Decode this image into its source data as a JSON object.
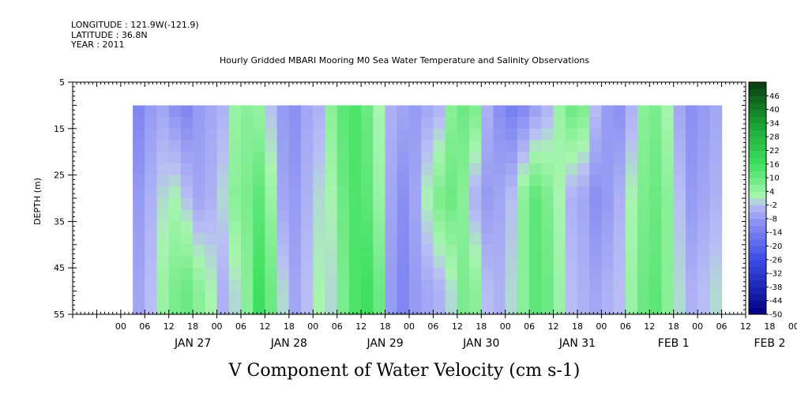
{
  "header": {
    "longitude": "LONGITUDE : 121.9W(-121.9)",
    "latitude": "LATITUDE : 36.8N",
    "year": "YEAR : 2011"
  },
  "chart_data": {
    "type": "heatmap",
    "title": "Hourly Gridded MBARI Mooring M0 Sea Water Temperature and Salinity Observations",
    "variable_label": "V Component of Water Velocity (cm s-1)",
    "ylabel": "DEPTH (m)",
    "ylim": [
      55,
      5
    ],
    "y_ticks": [
      "5",
      "15",
      "25",
      "35",
      "45",
      "55"
    ],
    "x_hour_labels": [
      "00",
      "06",
      "12",
      "18",
      "00",
      "06",
      "12",
      "18",
      "00",
      "06",
      "12",
      "18",
      "00",
      "06",
      "12",
      "18",
      "00",
      "06",
      "12",
      "18",
      "00",
      "06",
      "12",
      "18",
      "00",
      "06",
      "12",
      "18",
      "00",
      "06",
      "12",
      "18"
    ],
    "x_day_labels": [
      "JAN 27",
      "JAN 28",
      "JAN 29",
      "JAN 30",
      "JAN 31",
      "FEB 1",
      "FEB 2"
    ],
    "time_range_hours": [
      -18,
      150
    ],
    "data_start_hour": -3,
    "data_end_hour": 144,
    "depth_range_m": [
      10,
      55
    ],
    "colorbar_labels": [
      "46",
      "40",
      "34",
      "28",
      "22",
      "16",
      "10",
      "4",
      "-2",
      "-8",
      "-14",
      "-20",
      "-26",
      "-32",
      "-38",
      "-44",
      "-50"
    ],
    "colorbar_range": [
      -50,
      52
    ],
    "colors": {
      "strong_negative": "#000080",
      "negative": "#8a8ff2",
      "weak_negative": "#b9bdf5",
      "weak_positive": "#a8f5b0",
      "positive": "#3fe060",
      "strong_positive": "#0a3a12"
    },
    "time_series_hours": [
      -3,
      0,
      3,
      6,
      9,
      12,
      15,
      18,
      21,
      24,
      27,
      30,
      33,
      36,
      39,
      42,
      45,
      48,
      51,
      54,
      57,
      60,
      63,
      66,
      69,
      72,
      75,
      78,
      81,
      84,
      87,
      90,
      93,
      96,
      99,
      102,
      105,
      108,
      111,
      114,
      117,
      120,
      123,
      126,
      129,
      132,
      135,
      138,
      141,
      144
    ],
    "values_depth_10m": [
      -12,
      -8,
      -6,
      -10,
      -12,
      -8,
      -6,
      -4,
      4,
      6,
      4,
      -2,
      -8,
      -10,
      -6,
      -4,
      6,
      12,
      14,
      10,
      2,
      -4,
      -6,
      -8,
      -6,
      -4,
      6,
      10,
      8,
      -4,
      -10,
      -14,
      -12,
      -8,
      -4,
      4,
      10,
      8,
      -2,
      -8,
      -10,
      -4,
      6,
      8,
      2,
      -6,
      -10,
      -8,
      -6,
      -2
    ],
    "values_depth_30m": [
      -8,
      -4,
      0,
      2,
      -2,
      -6,
      -4,
      0,
      6,
      8,
      12,
      4,
      -6,
      -8,
      -4,
      0,
      2,
      10,
      14,
      12,
      4,
      -6,
      -10,
      -6,
      2,
      8,
      10,
      6,
      -4,
      -8,
      -6,
      -2,
      6,
      12,
      8,
      2,
      -4,
      -6,
      -10,
      -8,
      -4,
      2,
      8,
      10,
      6,
      -2,
      -8,
      -6,
      -4,
      0
    ],
    "values_depth_50m": [
      -6,
      -2,
      4,
      8,
      10,
      6,
      2,
      -4,
      0,
      6,
      16,
      10,
      0,
      -6,
      -2,
      2,
      0,
      8,
      14,
      16,
      10,
      -8,
      -12,
      -8,
      -6,
      -4,
      0,
      8,
      6,
      -2,
      -4,
      0,
      6,
      12,
      10,
      4,
      -2,
      -4,
      -6,
      -4,
      -2,
      4,
      10,
      12,
      6,
      0,
      -4,
      -2,
      0,
      2
    ]
  }
}
